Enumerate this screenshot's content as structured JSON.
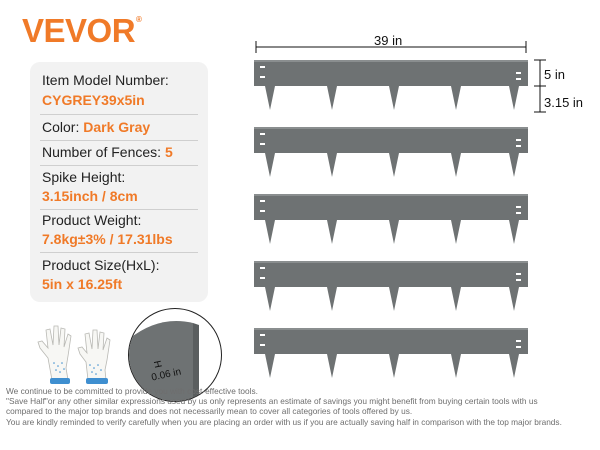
{
  "brand": {
    "name": "VEVOR",
    "mark": "®"
  },
  "colors": {
    "accent": "#f07a28",
    "fence": "#6e7273",
    "panel": "#f2f2f2"
  },
  "specs": [
    {
      "label": "Item Model Number:",
      "value": "CYGREY39x5in"
    },
    {
      "label": "Color:",
      "value": "Dark Gray",
      "inline": true
    },
    {
      "label": "Number of Fences:",
      "value": "5",
      "inline": true
    },
    {
      "label": "Spike Height:",
      "value": "3.15inch / 8cm"
    },
    {
      "label": "Product Weight:",
      "value": "7.8kg±3% / 17.31lbs"
    },
    {
      "label": "Product Size(HxL):",
      "value": "5in x 16.25ft"
    }
  ],
  "dimensions": {
    "length": "39 in",
    "height": "5 in",
    "spike": "3.15 in",
    "thickness_axis": "H",
    "thickness": "0.06 in"
  },
  "fence_count": 5,
  "disclaimer": [
    "We continue to be committed to provide you with cost-effective tools.",
    "\"Save Half\"or any other similar expressions used by us only represents an estimate of savings you might benefit from buying certain tools with us",
    "compared to the major top brands and does not necessarily mean to cover all categories of tools offered by us.",
    "You are kindly reminded to verify carefully when you are placing an order with us if you are actually saving half in comparison with the top major brands."
  ]
}
